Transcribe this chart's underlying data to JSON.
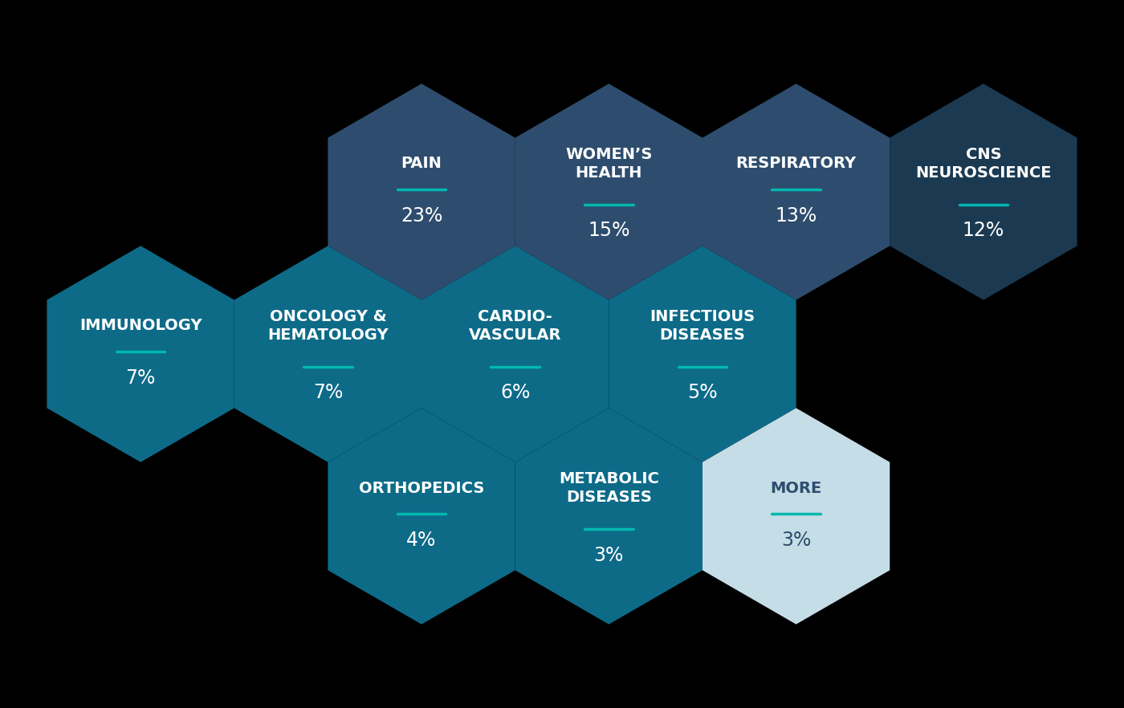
{
  "background_color": "#000000",
  "hexagons": [
    {
      "label": "PAIN",
      "value": "23%",
      "color": "#2e4d6e",
      "text_color": "#ffffff",
      "line_color": "#00b8b0",
      "row": 0,
      "col": 1
    },
    {
      "label": "WOMEN’S\nHEALTH",
      "value": "15%",
      "color": "#2e4d6e",
      "text_color": "#ffffff",
      "line_color": "#00b8b0",
      "row": 0,
      "col": 2
    },
    {
      "label": "RESPIRATORY",
      "value": "13%",
      "color": "#2e4d6e",
      "text_color": "#ffffff",
      "line_color": "#00b8b0",
      "row": 0,
      "col": 3
    },
    {
      "label": "CNS\nNEUROSCIENCE",
      "value": "12%",
      "color": "#1b3a52",
      "text_color": "#ffffff",
      "line_color": "#00b8b0",
      "row": 0,
      "col": 4
    },
    {
      "label": "IMMUNOLOGY",
      "value": "7%",
      "color": "#0d6b88",
      "text_color": "#ffffff",
      "line_color": "#00b8b0",
      "row": 1,
      "col": 0
    },
    {
      "label": "ONCOLOGY &\nHEMATOLOGY",
      "value": "7%",
      "color": "#0d6b88",
      "text_color": "#ffffff",
      "line_color": "#00b8b0",
      "row": 1,
      "col": 1
    },
    {
      "label": "CARDIO-\nVASCULAR",
      "value": "6%",
      "color": "#0d6b88",
      "text_color": "#ffffff",
      "line_color": "#00b8b0",
      "row": 1,
      "col": 2
    },
    {
      "label": "INFECTIOUS\nDISEASES",
      "value": "5%",
      "color": "#0d6b88",
      "text_color": "#ffffff",
      "line_color": "#00b8b0",
      "row": 1,
      "col": 3
    },
    {
      "label": "ORTHOPEDICS",
      "value": "4%",
      "color": "#0d6b88",
      "text_color": "#ffffff",
      "line_color": "#00b8b0",
      "row": 2,
      "col": 1
    },
    {
      "label": "METABOLIC\nDISEASES",
      "value": "3%",
      "color": "#0d6b88",
      "text_color": "#ffffff",
      "line_color": "#00b8b0",
      "row": 2,
      "col": 2
    },
    {
      "label": "MORE",
      "value": "3%",
      "color": "#c5dde6",
      "text_color": "#2e4d6e",
      "line_color": "#00b8b0",
      "row": 2,
      "col": 3
    }
  ],
  "title_fontsize": 14,
  "value_fontsize": 17,
  "line_width": 2.5
}
